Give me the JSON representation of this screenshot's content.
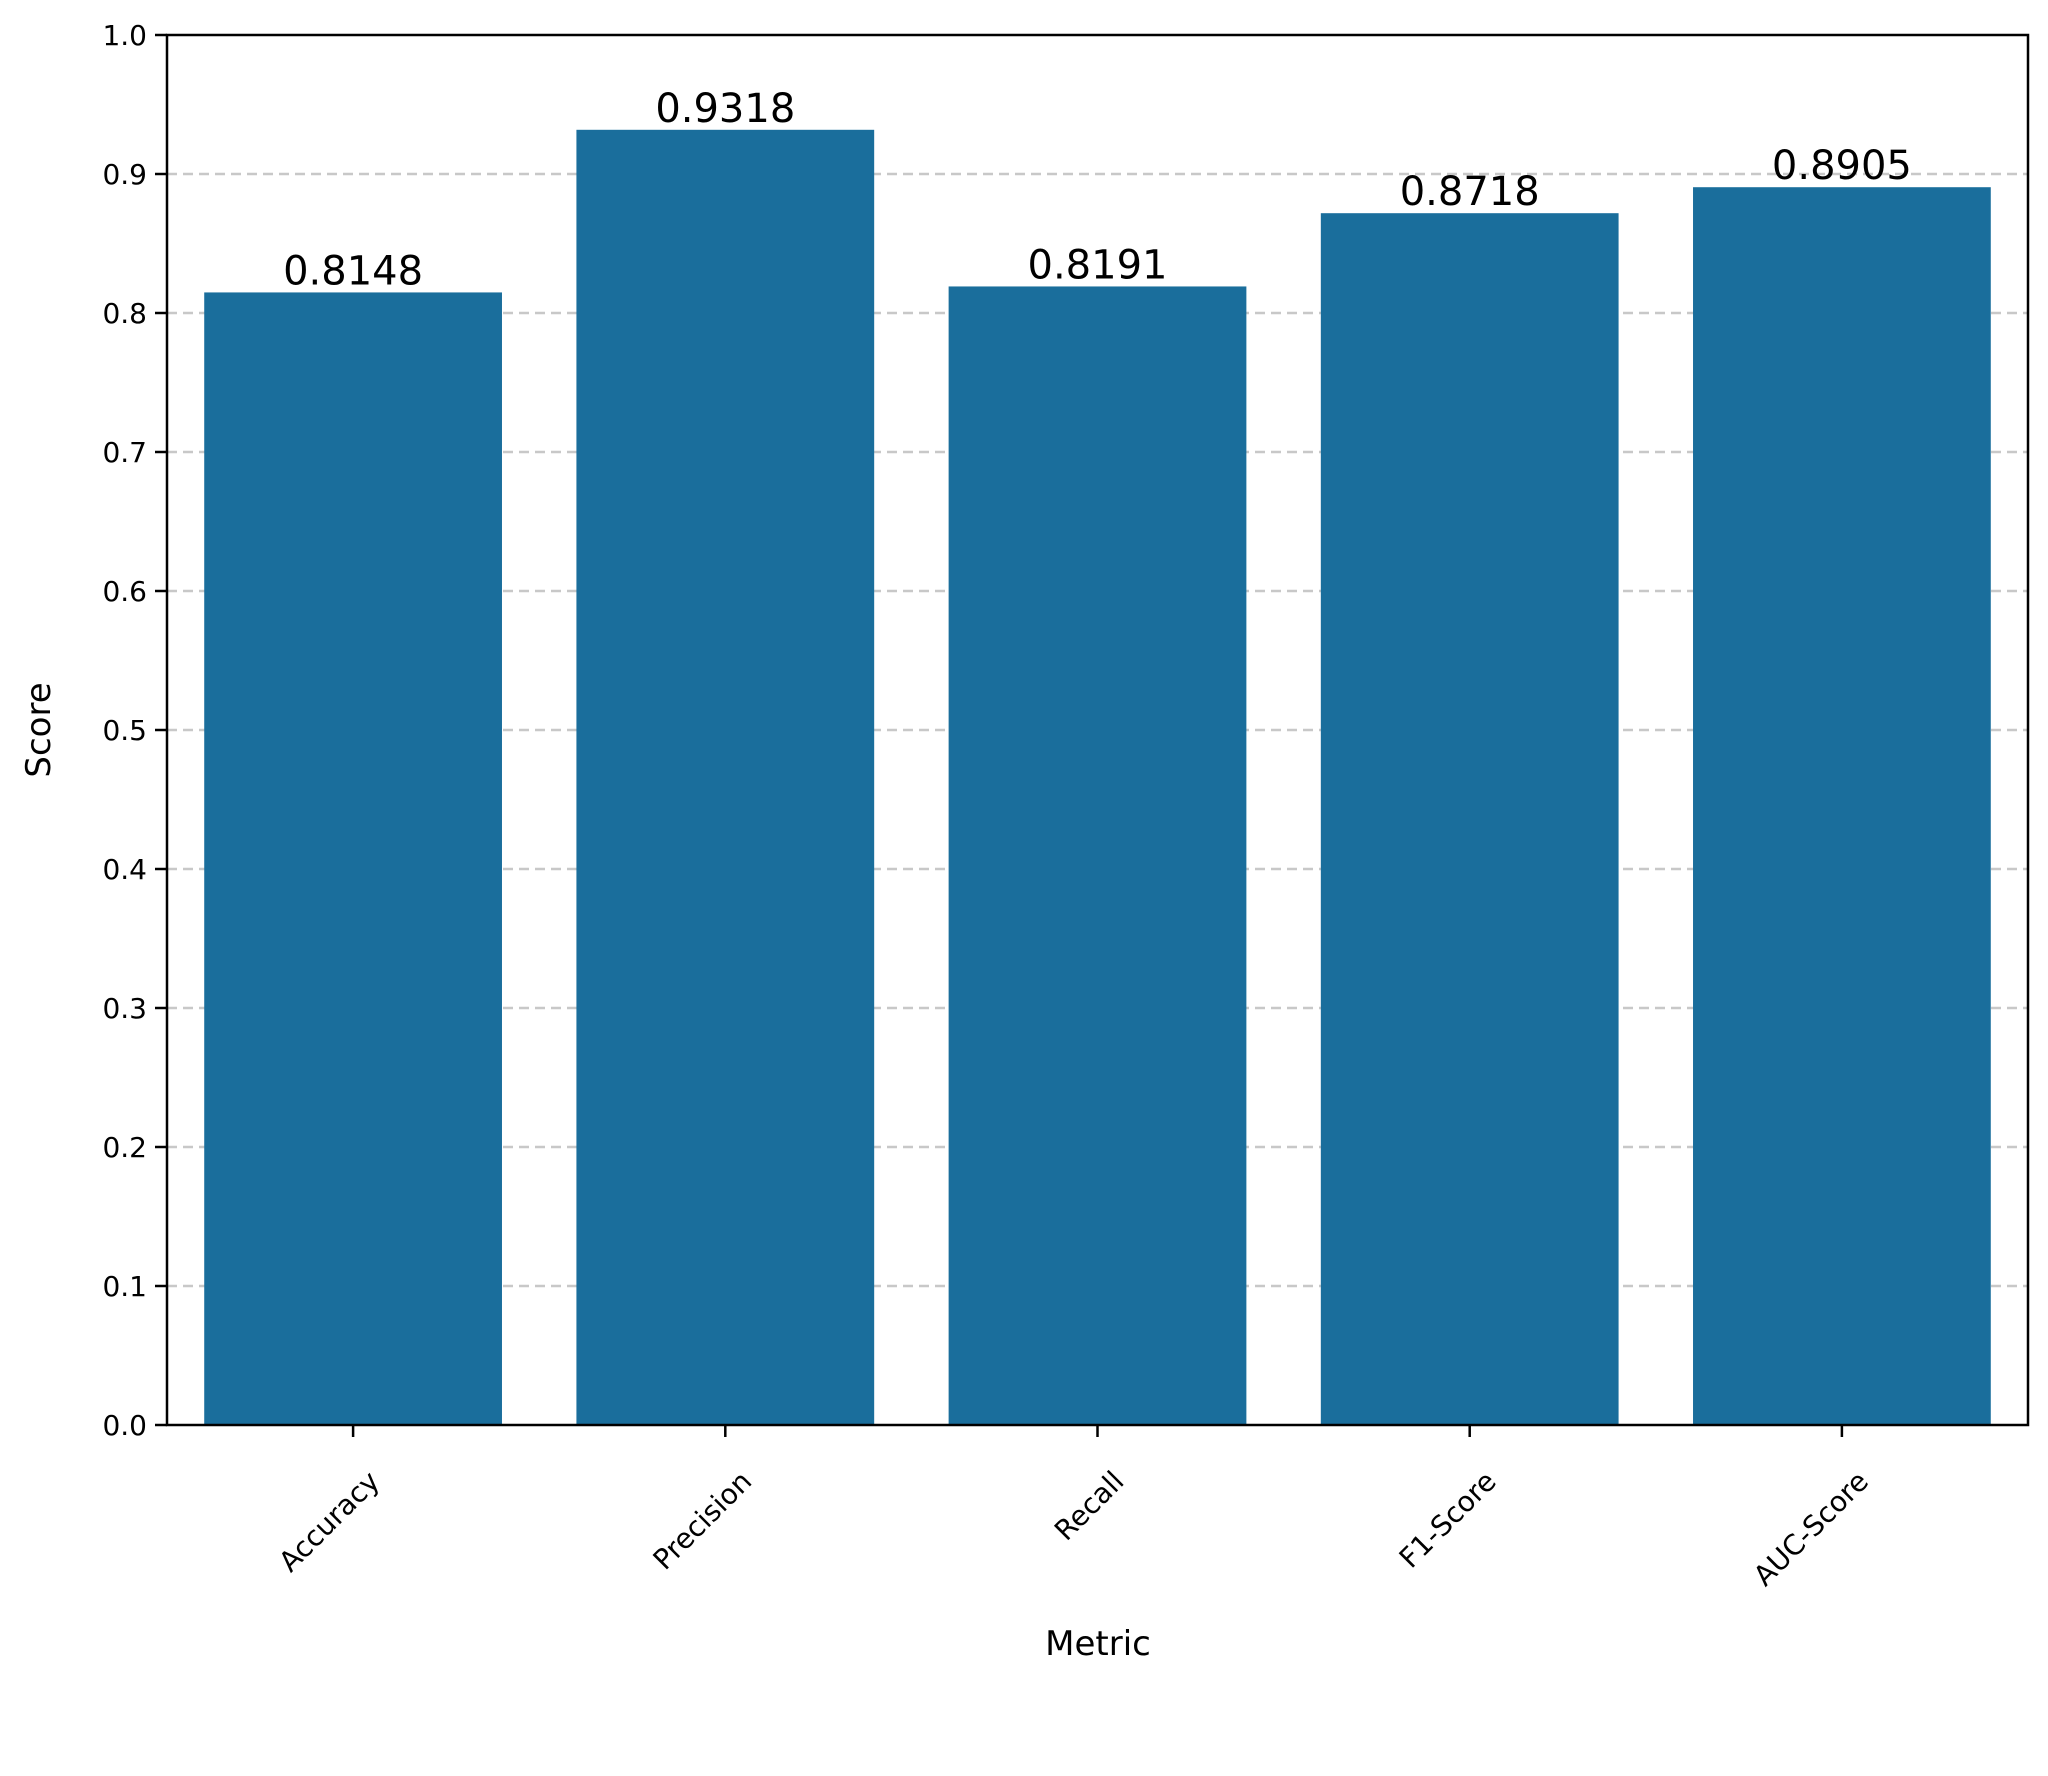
{
  "chart_data": {
    "type": "bar",
    "title": "",
    "xlabel": "Metric",
    "ylabel": "Score",
    "categories": [
      "Accuracy",
      "Precision",
      "Recall",
      "F1-Score",
      "AUC-Score"
    ],
    "values": [
      0.8148,
      0.9318,
      0.8191,
      0.8718,
      0.8905
    ],
    "value_labels": [
      "0.8148",
      "0.9318",
      "0.8191",
      "0.8718",
      "0.8905"
    ],
    "ylim": [
      0,
      1.0
    ],
    "yticks": [
      "0.0",
      "0.1",
      "0.2",
      "0.3",
      "0.4",
      "0.5",
      "0.6",
      "0.7",
      "0.8",
      "0.9",
      "1.0"
    ],
    "grid": "y-dashed",
    "bar_color": "#1a6e9c",
    "grid_color": "#c8c8c8"
  }
}
